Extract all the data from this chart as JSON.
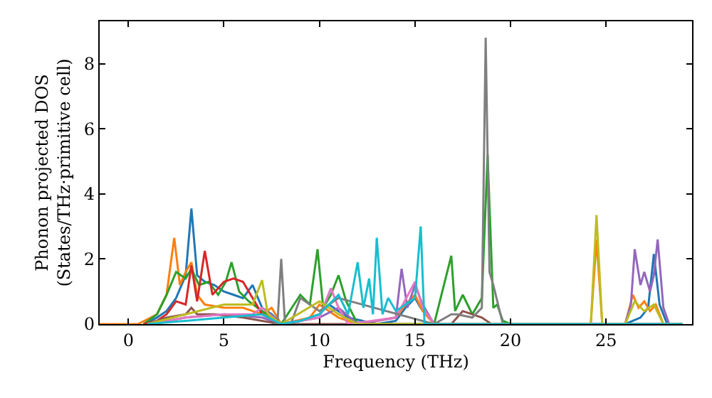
{
  "chart_data": {
    "type": "line",
    "xlabel": "Frequency (THz)",
    "ylabel": "Phonon projected DOS\n(States/THz·primitive cell)",
    "xlim": [
      -1.5,
      29.5
    ],
    "ylim": [
      0,
      9.3
    ],
    "xticks": [
      0,
      5,
      10,
      15,
      20,
      25
    ],
    "yticks": [
      0,
      2,
      4,
      6,
      8
    ],
    "marker": "none",
    "line_style": "solid",
    "series": [
      {
        "color": "#1f77b4",
        "x": [
          0.8,
          1.5,
          2,
          2.5,
          3,
          3.3,
          3.6,
          4,
          4.5,
          5,
          5.5,
          6,
          6.5,
          7,
          7.5,
          8,
          9,
          10,
          10.5,
          11,
          11.5,
          13,
          14,
          14.5,
          15,
          15.3,
          16,
          24,
          26,
          26.8,
          27.2,
          27.5,
          27.8,
          28.2,
          29
        ],
        "values": [
          0,
          0.2,
          0.4,
          0.8,
          1.5,
          3.55,
          1.5,
          1.3,
          1.2,
          1.0,
          0.9,
          0.8,
          1.2,
          0.5,
          0.3,
          0,
          0.1,
          0.3,
          0.6,
          0.4,
          0.2,
          0,
          0.1,
          0.5,
          0.8,
          0.5,
          0,
          0,
          0,
          0.2,
          0.5,
          2.15,
          0.6,
          0,
          0
        ]
      },
      {
        "color": "#ff7f0e",
        "x": [
          -1.5,
          0.5,
          1.5,
          2,
          2.4,
          2.7,
          3,
          3.3,
          3.6,
          4,
          5,
          6,
          6.5,
          7,
          7.5,
          8,
          9.5,
          10,
          10.5,
          11,
          12,
          13,
          14,
          14.5,
          15,
          15.4,
          16,
          24.2,
          24.5,
          24.8,
          26,
          26.4,
          26.7,
          27,
          27.3,
          27.6,
          28,
          29
        ],
        "values": [
          0,
          0,
          0.3,
          0.9,
          2.65,
          1.2,
          1.6,
          1.9,
          0.9,
          0.6,
          0.5,
          0.5,
          0.4,
          0.3,
          0.5,
          0,
          0.2,
          0.6,
          0.4,
          0.2,
          0,
          0.1,
          0.2,
          0.6,
          0.9,
          0.4,
          0,
          0,
          2.6,
          0,
          0,
          0.9,
          0.5,
          0.7,
          0.4,
          0.6,
          0,
          0
        ]
      },
      {
        "color": "#2ca02c",
        "x": [
          0.8,
          1.5,
          2,
          2.5,
          3,
          3.3,
          3.7,
          4.2,
          4.7,
          5.1,
          5.4,
          5.8,
          6.3,
          7,
          8,
          9,
          9.5,
          9.9,
          10.2,
          10.6,
          11,
          11.4,
          12,
          13,
          14,
          15,
          16,
          16.9,
          17.1,
          17.5,
          18,
          18.5,
          18.8,
          19.1,
          19.3,
          19.6,
          20,
          29
        ],
        "values": [
          0,
          0.3,
          0.9,
          1.6,
          1.4,
          1.7,
          1.2,
          1.3,
          0.9,
          1.3,
          1.9,
          1.0,
          0.7,
          0.4,
          0,
          0.9,
          0.6,
          2.3,
          0.5,
          0.9,
          1.5,
          0.7,
          0,
          0,
          0,
          0,
          0,
          2.1,
          0.4,
          0.9,
          0.3,
          0.8,
          5.2,
          0.5,
          0.6,
          0.1,
          0,
          0
        ]
      },
      {
        "color": "#d62728",
        "x": [
          0.8,
          1.5,
          2,
          2.5,
          3,
          3.3,
          3.6,
          4,
          4.4,
          5,
          5.5,
          6,
          6.5,
          7,
          8
        ],
        "values": [
          0,
          0.1,
          0.3,
          0.7,
          0.6,
          1.8,
          0.7,
          2.25,
          0.9,
          1.3,
          1.4,
          1.3,
          0.8,
          0.3,
          0
        ]
      },
      {
        "color": "#9467bd",
        "x": [
          1,
          3,
          5,
          7,
          8,
          10,
          11,
          12,
          14,
          14.3,
          14.6,
          15,
          15.4,
          16,
          26,
          26.3,
          26.5,
          26.8,
          27,
          27.3,
          27.5,
          27.7,
          28,
          28.3,
          29
        ],
        "values": [
          0,
          0.2,
          0.3,
          0.2,
          0,
          0.2,
          0.5,
          0,
          0.2,
          1.7,
          0.5,
          1.2,
          0.6,
          0,
          0,
          0.6,
          2.3,
          1.2,
          1.6,
          1.0,
          1.5,
          2.6,
          0.5,
          0,
          0
        ]
      },
      {
        "color": "#8c564b",
        "x": [
          1,
          2,
          3,
          3.3,
          3.6,
          4.5,
          6,
          7,
          8,
          16.9,
          17.5,
          18.5,
          19
        ],
        "values": [
          0,
          0.2,
          0.3,
          0.5,
          0.3,
          0.3,
          0.2,
          0.1,
          0,
          0,
          0.4,
          0.2,
          0
        ]
      },
      {
        "color": "#e377c2",
        "x": [
          1,
          3,
          5,
          6.5,
          7,
          8,
          10,
          10.6,
          11,
          11.5,
          14,
          15,
          15.4,
          16,
          29
        ],
        "values": [
          0,
          0.2,
          0.3,
          0.3,
          0.5,
          0,
          0.2,
          1.1,
          0.5,
          0,
          0.2,
          1.3,
          0.5,
          0,
          0
        ]
      },
      {
        "color": "#7f7f7f",
        "x": [
          7.5,
          7.8,
          8,
          8.2,
          8.5,
          9,
          10,
          11,
          16,
          16.9,
          17.2,
          18,
          18.5,
          18.7,
          18.9,
          19.1,
          19.6,
          20,
          29
        ],
        "values": [
          0,
          0,
          2.0,
          0,
          0,
          0.8,
          0.4,
          0.8,
          0,
          0.3,
          0.3,
          0.2,
          0.5,
          8.8,
          1.6,
          1.2,
          0,
          0,
          0
        ]
      },
      {
        "color": "#bcbd22",
        "x": [
          1,
          3,
          5,
          6.5,
          7,
          7.3,
          8,
          10,
          10.5,
          11,
          12,
          24.2,
          24.5,
          24.8,
          26,
          26.5,
          27,
          27.5,
          28,
          29
        ],
        "values": [
          0,
          0.3,
          0.6,
          0.6,
          1.35,
          0.3,
          0,
          0.7,
          0.5,
          0.3,
          0,
          0,
          3.35,
          0,
          0,
          0.7,
          0.4,
          0.6,
          0,
          0
        ]
      },
      {
        "color": "#17becf",
        "x": [
          1,
          3,
          5,
          7,
          8,
          9,
          10,
          11,
          11.5,
          12,
          12.3,
          12.6,
          12.8,
          13,
          13.3,
          13.6,
          14,
          14.5,
          15,
          15.3,
          15.5,
          16,
          29
        ],
        "values": [
          0,
          0.1,
          0.2,
          0.3,
          0,
          0.1,
          0.3,
          0.9,
          0.3,
          1.9,
          0.5,
          1.4,
          0.3,
          2.65,
          0.3,
          0.8,
          0.4,
          0.6,
          0.8,
          3.0,
          0,
          0,
          0
        ]
      }
    ]
  }
}
